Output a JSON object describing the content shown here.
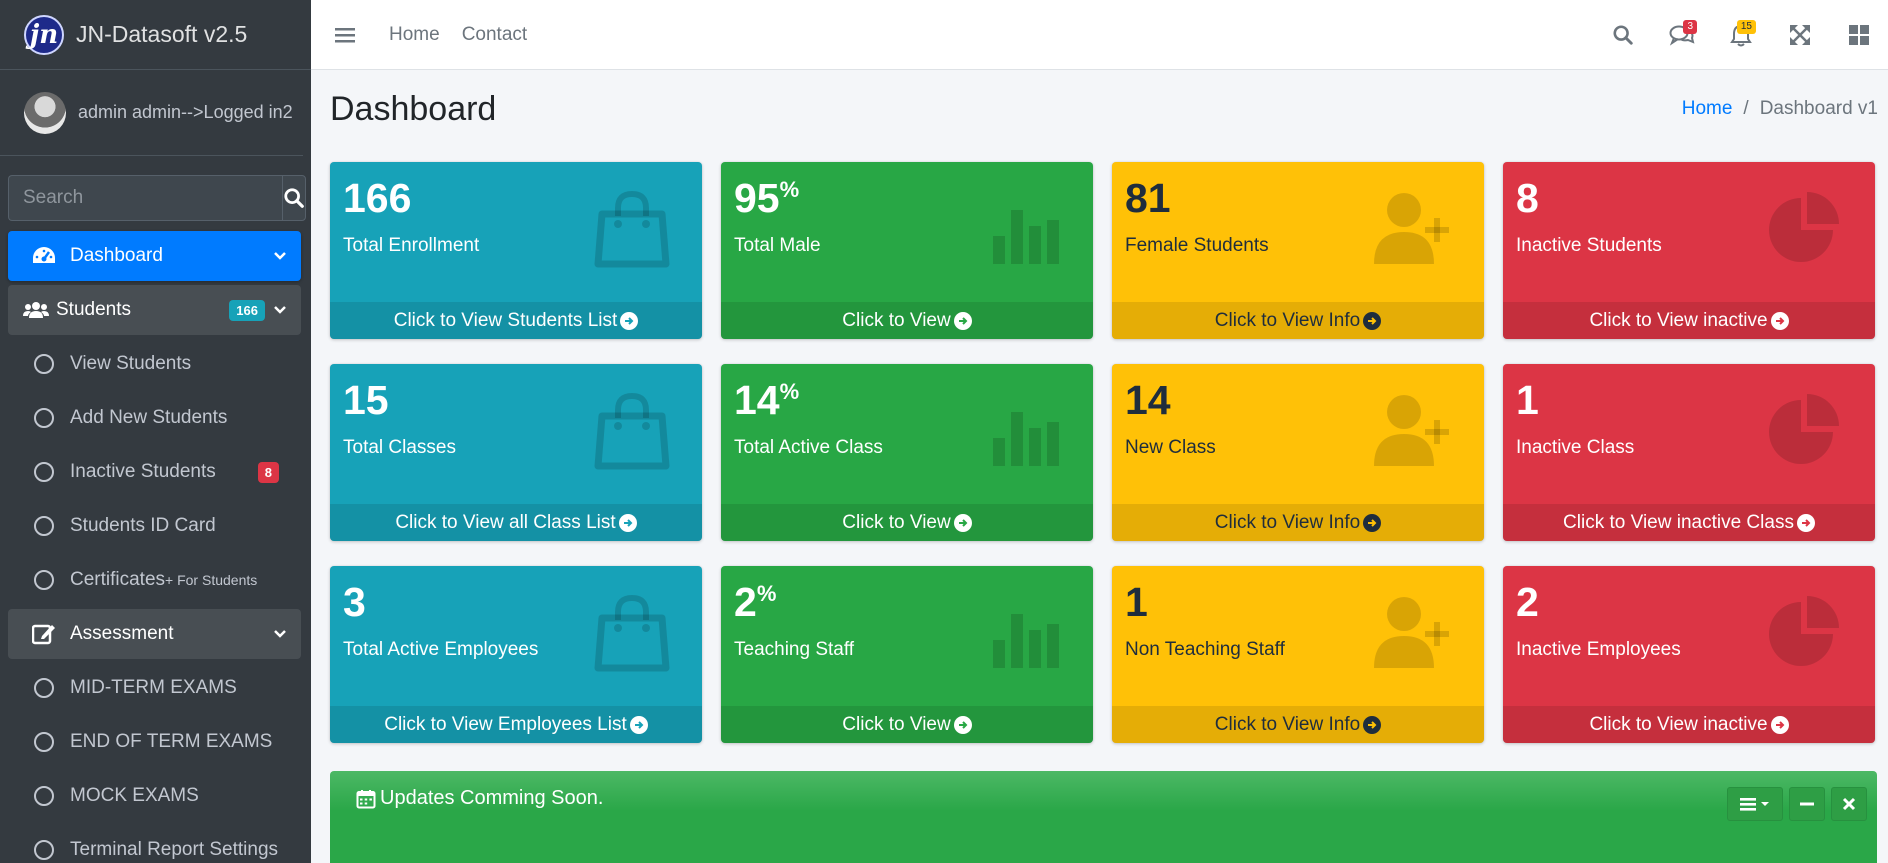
{
  "brand": {
    "name": "JN-Datasoft v2.5",
    "logo_text": "jn"
  },
  "user": {
    "name": "admin admin-->Logged in2"
  },
  "sidebar": {
    "search_placeholder": "Search",
    "dashboard": {
      "label": "Dashboard"
    },
    "students": {
      "label": "Students",
      "badge": "166"
    },
    "student_items": [
      {
        "label": "View Students"
      },
      {
        "label": "Add New Students"
      },
      {
        "label": "Inactive Students",
        "badge": "8"
      },
      {
        "label": "Students ID Card"
      },
      {
        "label": "Certificates",
        "small": "+ For Students"
      }
    ],
    "assessment": {
      "label": "Assessment"
    },
    "assessment_items": [
      {
        "label": "MID-TERM EXAMS"
      },
      {
        "label": "END OF TERM EXAMS"
      },
      {
        "label": "MOCK EXAMS"
      },
      {
        "label": "Terminal Report Settings"
      }
    ]
  },
  "topnav": {
    "home": "Home",
    "contact": "Contact",
    "messages_count": "3",
    "notifications_count": "15"
  },
  "page": {
    "title": "Dashboard",
    "breadcrumb_home": "Home",
    "breadcrumb_current": "Dashboard v1"
  },
  "boxes": [
    {
      "value": "166",
      "sup": "",
      "caption": "Total Enrollment",
      "footer": "Click to View Students List",
      "color": "#17a2b8",
      "icon": "shopping-bag-icon"
    },
    {
      "value": "95",
      "sup": "%",
      "caption": "Total Male",
      "footer": "Click to View",
      "color": "#28a745",
      "icon": "bar-chart-icon"
    },
    {
      "value": "81",
      "sup": "",
      "caption": "Female Students",
      "footer": "Click to View Info",
      "color": "#ffc107",
      "icon": "user-plus-icon"
    },
    {
      "value": "8",
      "sup": "",
      "caption": "Inactive Students",
      "footer": "Click to View inactive",
      "color": "#dc3545",
      "icon": "pie-chart-icon"
    },
    {
      "value": "15",
      "sup": "",
      "caption": "Total Classes",
      "footer": "Click to View all Class List",
      "color": "#17a2b8",
      "icon": "shopping-bag-icon"
    },
    {
      "value": "14",
      "sup": "%",
      "caption": "Total Active Class",
      "footer": "Click to View",
      "color": "#28a745",
      "icon": "bar-chart-icon"
    },
    {
      "value": "14",
      "sup": "",
      "caption": "New Class",
      "footer": "Click to View Info",
      "color": "#ffc107",
      "icon": "user-plus-icon"
    },
    {
      "value": "1",
      "sup": "",
      "caption": "Inactive Class",
      "footer": "Click to View inactive Class",
      "color": "#dc3545",
      "icon": "pie-chart-icon"
    },
    {
      "value": "3",
      "sup": "",
      "caption": "Total Active Employees",
      "footer": "Click to View Employees List",
      "color": "#17a2b8",
      "icon": "shopping-bag-icon"
    },
    {
      "value": "2",
      "sup": "%",
      "caption": "Teaching Staff",
      "footer": "Click to View",
      "color": "#28a745",
      "icon": "bar-chart-icon"
    },
    {
      "value": "1",
      "sup": "",
      "caption": "Non Teaching Staff",
      "footer": "Click to View Info",
      "color": "#ffc107",
      "icon": "user-plus-icon"
    },
    {
      "value": "2",
      "sup": "",
      "caption": "Inactive Employees",
      "footer": "Click to View inactive",
      "color": "#dc3545",
      "icon": "pie-chart-icon"
    }
  ],
  "updates": {
    "title": "Updates Comming Soon."
  }
}
